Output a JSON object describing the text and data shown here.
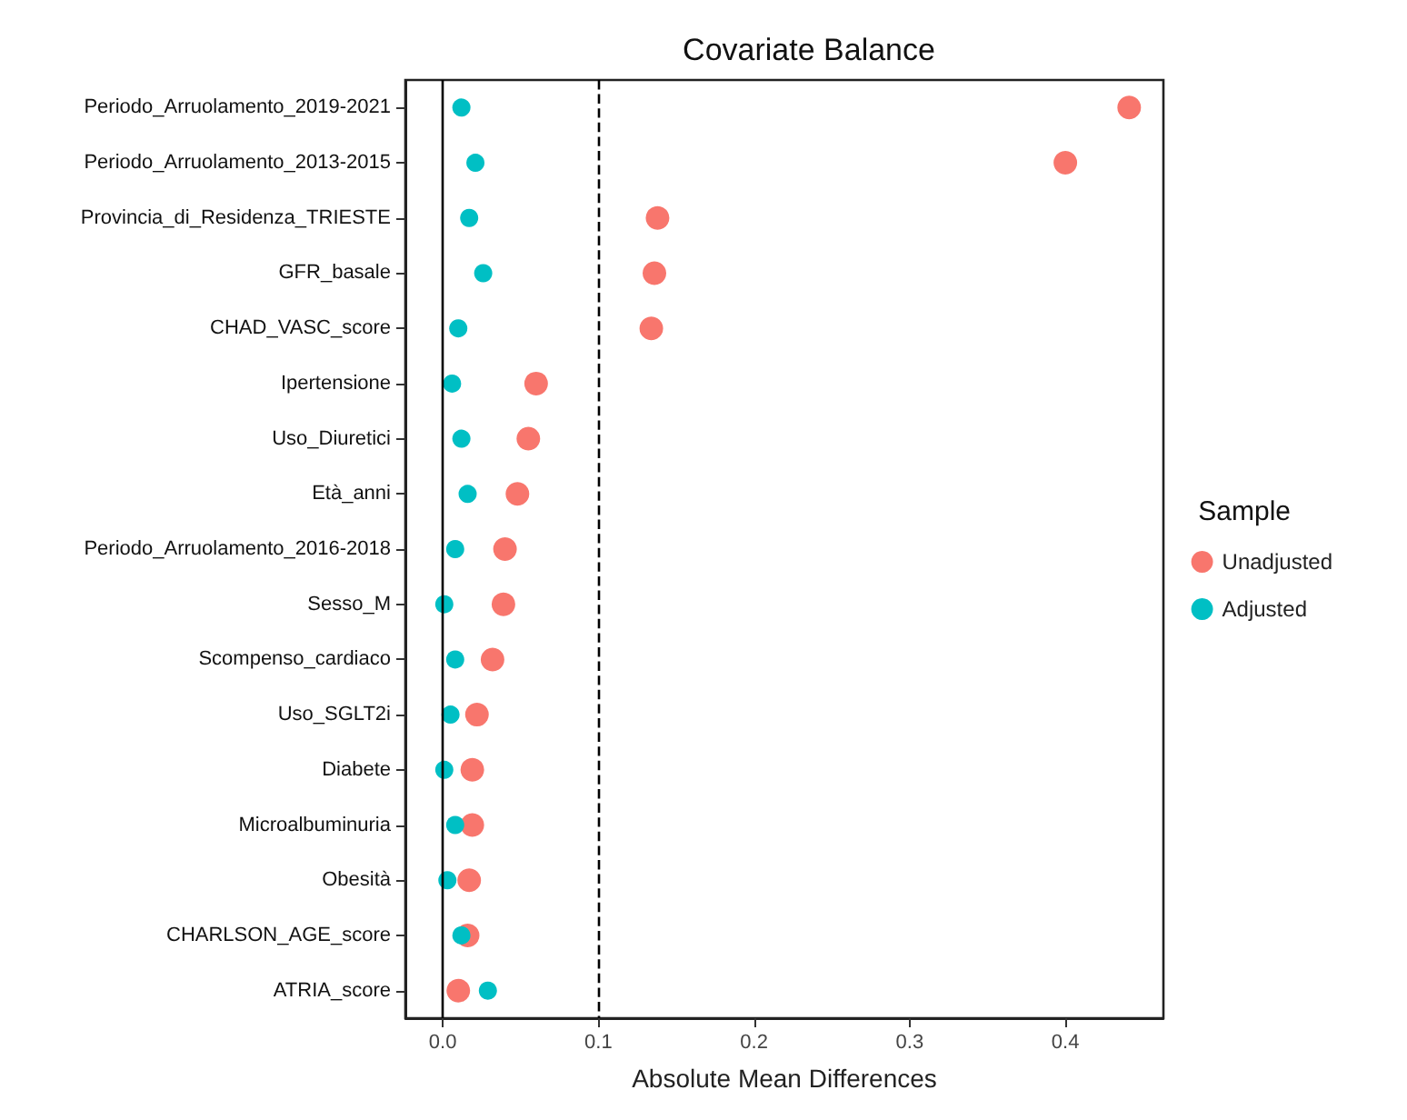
{
  "chart_data": {
    "type": "scatter",
    "title": "Covariate Balance",
    "xlabel": "Absolute Mean Differences",
    "legend_title": "Sample",
    "orientation": "horizontal",
    "categories": [
      "Periodo_Arruolamento_2019-2021",
      "Periodo_Arruolamento_2013-2015",
      "Provincia_di_Residenza_TRIESTE",
      "GFR_basale",
      "CHAD_VASC_score",
      "Ipertensione",
      "Uso_Diuretici",
      "Età_anni",
      "Periodo_Arruolamento_2016-2018",
      "Sesso_M",
      "Scompenso_cardiaco",
      "Uso_SGLT2i",
      "Diabete",
      "Microalbuminuria",
      "Obesità",
      "CHARLSON_AGE_score",
      "ATRIA_score"
    ],
    "series": [
      {
        "name": "Unadjusted",
        "color": "#f8766d",
        "values": [
          0.441,
          0.4,
          0.138,
          0.136,
          0.134,
          0.06,
          0.055,
          0.048,
          0.04,
          0.039,
          0.032,
          0.022,
          0.019,
          0.019,
          0.017,
          0.016,
          0.01
        ]
      },
      {
        "name": "Adjusted",
        "color": "#00bfc4",
        "values": [
          0.012,
          0.021,
          0.017,
          0.026,
          0.01,
          0.006,
          0.012,
          0.016,
          0.008,
          0.001,
          0.008,
          0.005,
          0.001,
          0.008,
          0.003,
          0.012,
          0.029
        ]
      }
    ],
    "xlim": [
      -0.024,
      0.463
    ],
    "xticks": [
      {
        "value": 0,
        "label": "0.0"
      },
      0.1,
      0.2,
      0.3,
      0.4
    ],
    "ref_lines": [
      {
        "axis": "x",
        "value": 0,
        "color": "#000000",
        "line_style": "solid"
      },
      {
        "axis": "x",
        "value": 0.1,
        "color": "#000000",
        "line_style": "dashed"
      }
    ],
    "grid": false,
    "legend": "right",
    "marker": "circle"
  }
}
